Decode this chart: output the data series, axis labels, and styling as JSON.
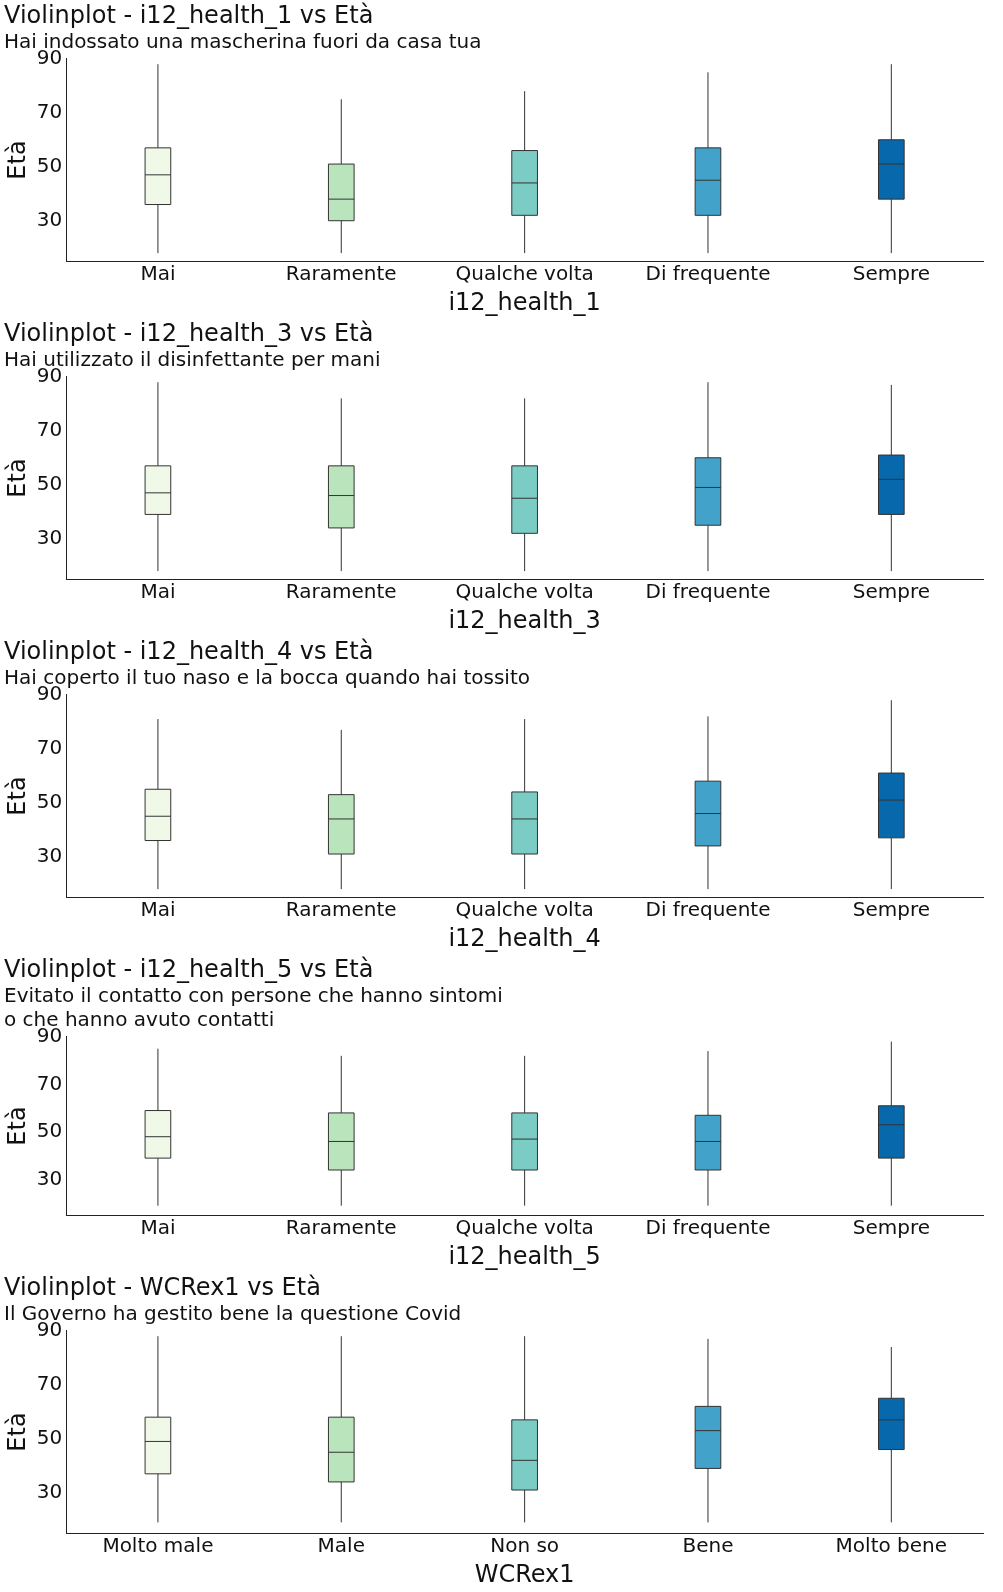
{
  "chart_data": [
    {
      "type": "box",
      "title": "Violinplot - i12_health_1 vs Età",
      "subtitle": "Hai indossato una mascherina fuori da casa tua",
      "xlabel": "i12_health_1",
      "ylabel": "Età",
      "categories": [
        "Mai",
        "Raramente",
        "Qualche volta",
        "Di frequente",
        "Sempre"
      ],
      "colors": [
        "#f0f9e8",
        "#bae4bc",
        "#7bccc4",
        "#43a2ca",
        "#0868ac"
      ],
      "ylim": [
        15,
        90
      ],
      "yticks": [
        30,
        50,
        70,
        90
      ],
      "boxes": [
        {
          "low": 18,
          "q1": 36,
          "median": 47,
          "q3": 57,
          "high": 88
        },
        {
          "low": 18,
          "q1": 30,
          "median": 38,
          "q3": 51,
          "high": 75
        },
        {
          "low": 18,
          "q1": 32,
          "median": 44,
          "q3": 56,
          "high": 78
        },
        {
          "low": 18,
          "q1": 32,
          "median": 45,
          "q3": 57,
          "high": 85
        },
        {
          "low": 18,
          "q1": 38,
          "median": 51,
          "q3": 60,
          "high": 88
        }
      ]
    },
    {
      "type": "box",
      "title": "Violinplot - i12_health_3 vs Età",
      "subtitle": "Hai utilizzato il disinfettante per mani",
      "xlabel": "i12_health_3",
      "ylabel": "Età",
      "categories": [
        "Mai",
        "Raramente",
        "Qualche volta",
        "Di frequente",
        "Sempre"
      ],
      "colors": [
        "#f0f9e8",
        "#bae4bc",
        "#7bccc4",
        "#43a2ca",
        "#0868ac"
      ],
      "ylim": [
        15,
        90
      ],
      "yticks": [
        30,
        50,
        70,
        90
      ],
      "boxes": [
        {
          "low": 18,
          "q1": 39,
          "median": 47,
          "q3": 57,
          "high": 88
        },
        {
          "low": 18,
          "q1": 34,
          "median": 46,
          "q3": 57,
          "high": 82
        },
        {
          "low": 18,
          "q1": 32,
          "median": 45,
          "q3": 57,
          "high": 82
        },
        {
          "low": 18,
          "q1": 35,
          "median": 49,
          "q3": 60,
          "high": 88
        },
        {
          "low": 18,
          "q1": 39,
          "median": 52,
          "q3": 61,
          "high": 87
        }
      ]
    },
    {
      "type": "box",
      "title": "Violinplot - i12_health_4 vs Età",
      "subtitle": "Hai coperto il tuo naso e la bocca quando hai tossito",
      "xlabel": "i12_health_4",
      "ylabel": "Età",
      "categories": [
        "Mai",
        "Raramente",
        "Qualche volta",
        "Di frequente",
        "Sempre"
      ],
      "colors": [
        "#f0f9e8",
        "#bae4bc",
        "#7bccc4",
        "#43a2ca",
        "#0868ac"
      ],
      "ylim": [
        15,
        90
      ],
      "yticks": [
        30,
        50,
        70,
        90
      ],
      "boxes": [
        {
          "low": 18,
          "q1": 36,
          "median": 45,
          "q3": 55,
          "high": 81
        },
        {
          "low": 18,
          "q1": 31,
          "median": 44,
          "q3": 53,
          "high": 77
        },
        {
          "low": 18,
          "q1": 31,
          "median": 44,
          "q3": 54,
          "high": 81
        },
        {
          "low": 18,
          "q1": 34,
          "median": 46,
          "q3": 58,
          "high": 82
        },
        {
          "low": 18,
          "q1": 37,
          "median": 51,
          "q3": 61,
          "high": 88
        }
      ]
    },
    {
      "type": "box",
      "title": "Violinplot - i12_health_5 vs Età",
      "subtitle": "Evitato il contatto con persone che hanno sintomi\no che hanno avuto contatti",
      "xlabel": "i12_health_5",
      "ylabel": "Età",
      "categories": [
        "Mai",
        "Raramente",
        "Qualche volta",
        "Di frequente",
        "Sempre"
      ],
      "colors": [
        "#f0f9e8",
        "#bae4bc",
        "#7bccc4",
        "#43a2ca",
        "#0868ac"
      ],
      "ylim": [
        15,
        90
      ],
      "yticks": [
        30,
        50,
        70,
        90
      ],
      "boxes": [
        {
          "low": 19,
          "q1": 39,
          "median": 48,
          "q3": 59,
          "high": 85
        },
        {
          "low": 19,
          "q1": 34,
          "median": 46,
          "q3": 58,
          "high": 82
        },
        {
          "low": 19,
          "q1": 34,
          "median": 47,
          "q3": 58,
          "high": 82
        },
        {
          "low": 19,
          "q1": 34,
          "median": 46,
          "q3": 57,
          "high": 84
        },
        {
          "low": 19,
          "q1": 39,
          "median": 53,
          "q3": 61,
          "high": 88
        }
      ]
    },
    {
      "type": "box",
      "title": "Violinplot - WCRex1 vs Età",
      "subtitle": "Il Governo ha gestito bene la questione Covid",
      "xlabel": "WCRex1",
      "ylabel": "Età",
      "categories": [
        "Molto male",
        "Male",
        "Non so",
        "Bene",
        "Molto bene"
      ],
      "colors": [
        "#f0f9e8",
        "#bae4bc",
        "#7bccc4",
        "#43a2ca",
        "#0868ac"
      ],
      "ylim": [
        15,
        90
      ],
      "yticks": [
        30,
        50,
        70,
        90
      ],
      "boxes": [
        {
          "low": 19,
          "q1": 37,
          "median": 49,
          "q3": 58,
          "high": 88
        },
        {
          "low": 19,
          "q1": 34,
          "median": 45,
          "q3": 58,
          "high": 88
        },
        {
          "low": 19,
          "q1": 31,
          "median": 42,
          "q3": 57,
          "high": 88
        },
        {
          "low": 19,
          "q1": 39,
          "median": 53,
          "q3": 62,
          "high": 87
        },
        {
          "low": 19,
          "q1": 46,
          "median": 57,
          "q3": 65,
          "high": 84
        }
      ]
    }
  ]
}
